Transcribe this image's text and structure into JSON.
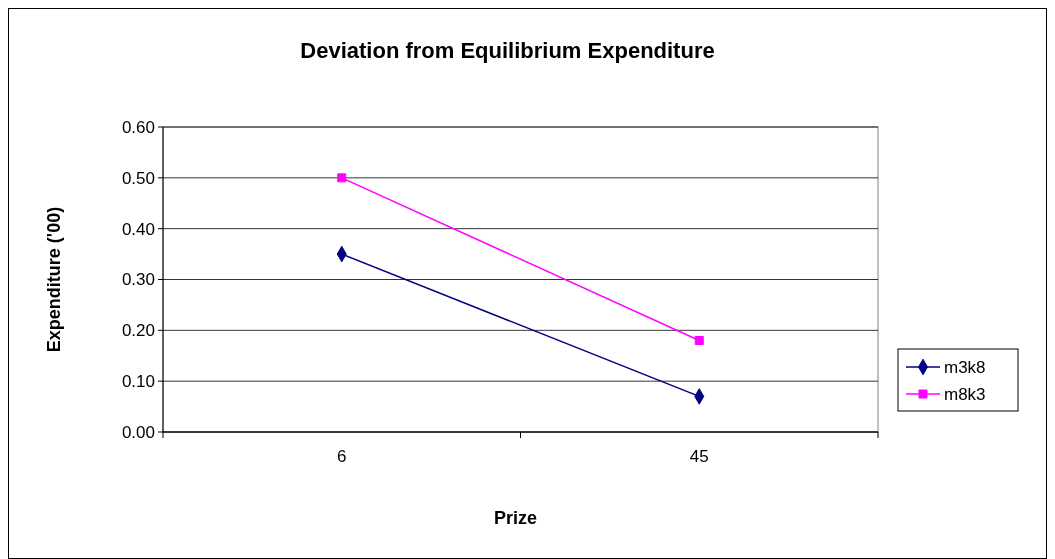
{
  "chart_data": {
    "type": "line",
    "title": "Deviation from Equilibrium Expenditure",
    "xlabel": "Prize",
    "ylabel": "Expenditure ('00)",
    "categories": [
      "6",
      "45"
    ],
    "series": [
      {
        "name": "m3k8",
        "color": "#000080",
        "values": [
          0.35,
          0.07
        ],
        "marker": "diamond"
      },
      {
        "name": "m8k3",
        "color": "#ff00ff",
        "values": [
          0.5,
          0.18
        ],
        "marker": "square"
      }
    ],
    "ylim": [
      0,
      0.6
    ],
    "yticks": [
      {
        "value": 0,
        "label": "0.00"
      },
      {
        "value": 0.1,
        "label": "0.10"
      },
      {
        "value": 0.2,
        "label": "0.20"
      },
      {
        "value": 0.3,
        "label": "0.30"
      },
      {
        "value": 0.4,
        "label": "0.40"
      },
      {
        "value": 0.5,
        "label": "0.50"
      },
      {
        "value": 0.6,
        "label": "0.60"
      }
    ],
    "grid": "y",
    "legend": "right"
  }
}
